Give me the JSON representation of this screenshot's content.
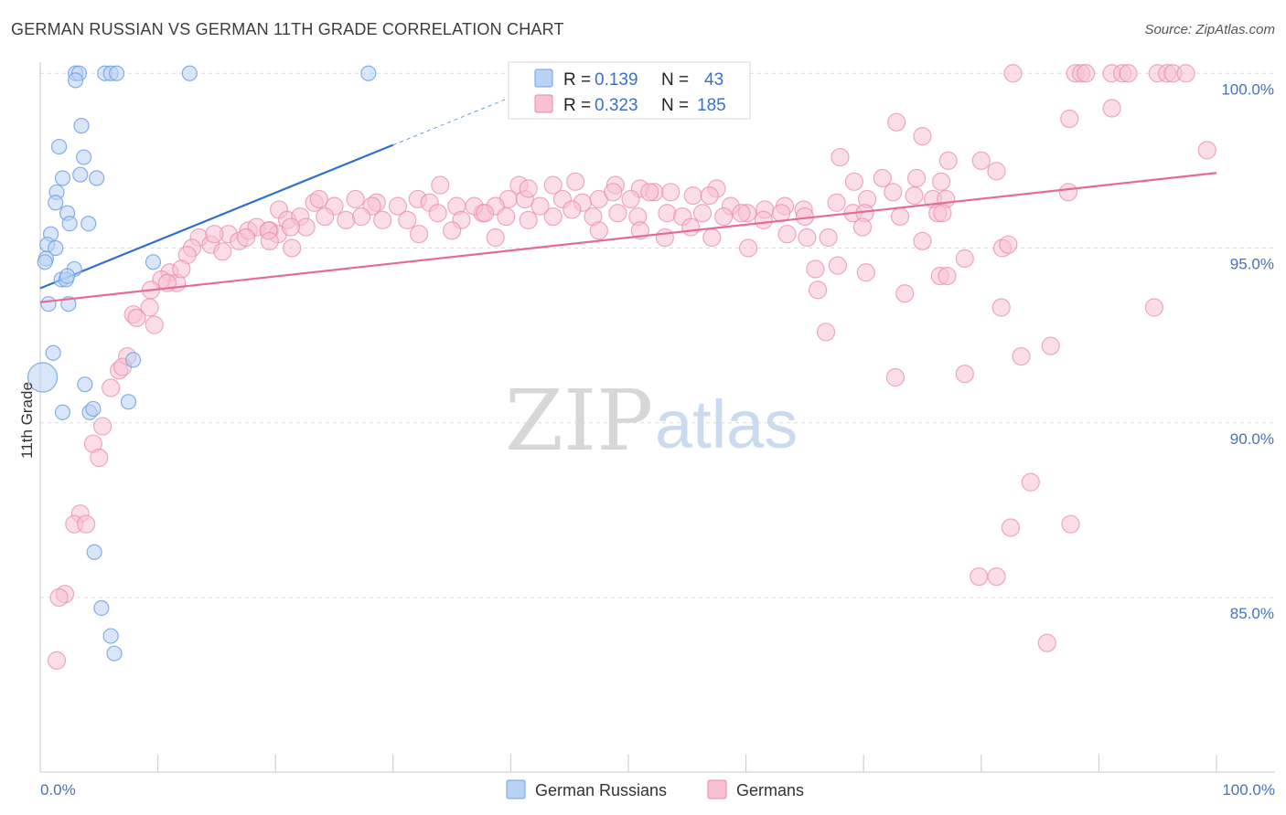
{
  "title": "GERMAN RUSSIAN VS GERMAN 11TH GRADE CORRELATION CHART",
  "source": "Source: ZipAtlas.com",
  "watermark": {
    "zip": "ZIP",
    "atlas": "atlas"
  },
  "colors": {
    "blue": "#6fa2e6",
    "blue_fill": "#b9d2f3",
    "pink": "#e888a8",
    "pink_fill": "#f7c1d3",
    "blue_line": "#2f6fd0",
    "pink_line": "#e56a94",
    "tick": "#4472c4"
  },
  "legend": {
    "r_label": "R =",
    "n_label": "N =",
    "series": [
      {
        "name": "German Russians",
        "r": "0.139",
        "n": "43"
      },
      {
        "name": "Germans",
        "r": "0.323",
        "n": "185"
      }
    ]
  },
  "chart_data": {
    "type": "scatter",
    "title": "GERMAN RUSSIAN VS GERMAN 11TH GRADE CORRELATION CHART",
    "xlabel": "",
    "ylabel": "11th Grade",
    "xlim": [
      0,
      100
    ],
    "ylim": [
      80.0,
      100.8
    ],
    "x_tick_labels": [
      "0.0%",
      "100.0%"
    ],
    "y_ticks": [
      85.0,
      90.0,
      95.0,
      100.0
    ],
    "y_tick_labels": [
      "85.0%",
      "90.0%",
      "95.0%",
      "100.0%"
    ],
    "series": [
      {
        "name": "German Russians",
        "trend": {
          "x0": 0,
          "y0": 93.85,
          "x1": 30,
          "y1": 97.95,
          "dashed_to_x": 42
        },
        "points": [
          [
            3.0,
            100.0
          ],
          [
            3.3,
            100.0
          ],
          [
            5.5,
            100.0
          ],
          [
            6.0,
            100.0
          ],
          [
            6.5,
            100.0
          ],
          [
            12.7,
            100.0
          ],
          [
            27.9,
            100.0
          ],
          [
            3.0,
            99.8
          ],
          [
            3.5,
            98.5
          ],
          [
            1.6,
            97.9
          ],
          [
            3.7,
            97.6
          ],
          [
            1.9,
            97.0
          ],
          [
            3.4,
            97.1
          ],
          [
            4.8,
            97.0
          ],
          [
            1.4,
            96.6
          ],
          [
            1.3,
            96.3
          ],
          [
            2.3,
            96.0
          ],
          [
            2.5,
            95.7
          ],
          [
            4.1,
            95.7
          ],
          [
            0.9,
            95.4
          ],
          [
            0.6,
            95.1
          ],
          [
            1.3,
            95.0
          ],
          [
            0.5,
            94.7
          ],
          [
            0.4,
            94.6
          ],
          [
            2.9,
            94.4
          ],
          [
            9.6,
            94.6
          ],
          [
            1.8,
            94.1
          ],
          [
            2.2,
            94.1
          ],
          [
            0.7,
            93.4
          ],
          [
            2.4,
            93.4
          ],
          [
            1.1,
            92.0
          ],
          [
            7.9,
            91.8
          ],
          [
            0.2,
            91.3
          ],
          [
            3.8,
            91.1
          ],
          [
            7.5,
            90.6
          ],
          [
            1.9,
            90.3
          ],
          [
            4.2,
            90.3
          ],
          [
            4.5,
            90.4
          ],
          [
            4.6,
            86.3
          ],
          [
            5.2,
            84.7
          ],
          [
            6.0,
            83.9
          ],
          [
            6.3,
            83.4
          ],
          [
            2.3,
            94.2
          ]
        ],
        "sizes": {
          "0.2,91.3": "large"
        }
      },
      {
        "name": "Germans",
        "trend": {
          "x0": 0,
          "y0": 93.45,
          "x1": 100,
          "y1": 97.15
        },
        "points": [
          [
            82.7,
            100.0
          ],
          [
            88.0,
            100.0
          ],
          [
            88.5,
            100.0
          ],
          [
            88.9,
            100.0
          ],
          [
            91.1,
            100.0
          ],
          [
            92.0,
            100.0
          ],
          [
            92.5,
            100.0
          ],
          [
            95.0,
            100.0
          ],
          [
            95.8,
            100.0
          ],
          [
            96.3,
            100.0
          ],
          [
            97.4,
            100.0
          ],
          [
            91.1,
            99.0
          ],
          [
            87.5,
            98.7
          ],
          [
            72.8,
            98.6
          ],
          [
            75.0,
            98.2
          ],
          [
            99.2,
            97.8
          ],
          [
            68.0,
            97.6
          ],
          [
            77.2,
            97.5
          ],
          [
            80.0,
            97.5
          ],
          [
            81.3,
            97.2
          ],
          [
            71.6,
            97.0
          ],
          [
            69.2,
            96.9
          ],
          [
            74.5,
            97.0
          ],
          [
            76.6,
            96.9
          ],
          [
            40.7,
            96.8
          ],
          [
            45.5,
            96.9
          ],
          [
            43.6,
            96.8
          ],
          [
            34.0,
            96.8
          ],
          [
            57.5,
            96.7
          ],
          [
            48.9,
            96.8
          ],
          [
            51.0,
            96.7
          ],
          [
            52.2,
            96.6
          ],
          [
            87.4,
            96.6
          ],
          [
            20.3,
            96.1
          ],
          [
            23.3,
            96.3
          ],
          [
            23.7,
            96.4
          ],
          [
            25.0,
            96.2
          ],
          [
            26.8,
            96.4
          ],
          [
            28.6,
            96.3
          ],
          [
            30.4,
            96.2
          ],
          [
            32.1,
            96.4
          ],
          [
            33.1,
            96.3
          ],
          [
            35.4,
            96.2
          ],
          [
            37.6,
            96.0
          ],
          [
            39.8,
            96.4
          ],
          [
            41.2,
            96.4
          ],
          [
            42.5,
            96.2
          ],
          [
            44.4,
            96.4
          ],
          [
            46.1,
            96.3
          ],
          [
            47.5,
            96.4
          ],
          [
            48.7,
            96.6
          ],
          [
            50.2,
            96.4
          ],
          [
            51.8,
            96.6
          ],
          [
            53.6,
            96.6
          ],
          [
            55.5,
            96.5
          ],
          [
            56.9,
            96.5
          ],
          [
            58.7,
            96.2
          ],
          [
            60.1,
            96.0
          ],
          [
            61.6,
            96.1
          ],
          [
            63.3,
            96.2
          ],
          [
            64.9,
            96.1
          ],
          [
            67.7,
            96.3
          ],
          [
            70.3,
            96.4
          ],
          [
            72.5,
            96.6
          ],
          [
            74.3,
            96.5
          ],
          [
            75.9,
            96.4
          ],
          [
            77.0,
            96.4
          ],
          [
            28.2,
            96.2
          ],
          [
            36.9,
            96.2
          ],
          [
            38.7,
            96.2
          ],
          [
            21.0,
            95.8
          ],
          [
            22.1,
            95.9
          ],
          [
            22.6,
            95.6
          ],
          [
            24.2,
            95.9
          ],
          [
            26.0,
            95.8
          ],
          [
            27.3,
            95.9
          ],
          [
            29.1,
            95.8
          ],
          [
            31.2,
            95.8
          ],
          [
            33.8,
            96.0
          ],
          [
            35.8,
            95.8
          ],
          [
            37.8,
            96.0
          ],
          [
            39.6,
            95.9
          ],
          [
            41.5,
            95.8
          ],
          [
            43.6,
            95.9
          ],
          [
            45.2,
            96.1
          ],
          [
            47.0,
            95.9
          ],
          [
            49.1,
            96.0
          ],
          [
            50.8,
            95.9
          ],
          [
            53.3,
            96.0
          ],
          [
            54.6,
            95.9
          ],
          [
            56.3,
            96.0
          ],
          [
            58.1,
            95.9
          ],
          [
            59.6,
            96.0
          ],
          [
            61.5,
            95.8
          ],
          [
            63.0,
            96.0
          ],
          [
            65.0,
            95.9
          ],
          [
            69.1,
            96.0
          ],
          [
            70.1,
            96.0
          ],
          [
            73.1,
            95.9
          ],
          [
            76.3,
            96.0
          ],
          [
            76.7,
            96.0
          ],
          [
            13.5,
            95.3
          ],
          [
            14.5,
            95.1
          ],
          [
            16.0,
            95.4
          ],
          [
            16.9,
            95.2
          ],
          [
            17.7,
            95.5
          ],
          [
            18.4,
            95.6
          ],
          [
            19.5,
            95.5
          ],
          [
            20.2,
            95.4
          ],
          [
            21.3,
            95.6
          ],
          [
            14.8,
            95.4
          ],
          [
            17.5,
            95.3
          ],
          [
            19.4,
            95.5
          ],
          [
            32.2,
            95.4
          ],
          [
            35.0,
            95.5
          ],
          [
            38.7,
            95.3
          ],
          [
            47.5,
            95.5
          ],
          [
            51.0,
            95.5
          ],
          [
            53.1,
            95.3
          ],
          [
            55.3,
            95.6
          ],
          [
            57.1,
            95.3
          ],
          [
            60.2,
            95.0
          ],
          [
            63.5,
            95.4
          ],
          [
            65.2,
            95.3
          ],
          [
            67.0,
            95.3
          ],
          [
            69.9,
            95.6
          ],
          [
            75.0,
            95.2
          ],
          [
            81.8,
            95.0
          ],
          [
            82.3,
            95.1
          ],
          [
            78.6,
            94.7
          ],
          [
            12.9,
            95.0
          ],
          [
            12.5,
            94.8
          ],
          [
            15.5,
            94.9
          ],
          [
            11.0,
            94.3
          ],
          [
            11.6,
            94.0
          ],
          [
            12.0,
            94.4
          ],
          [
            10.3,
            94.1
          ],
          [
            10.8,
            94.0
          ],
          [
            9.4,
            93.8
          ],
          [
            21.4,
            95.0
          ],
          [
            65.9,
            94.4
          ],
          [
            67.8,
            94.5
          ],
          [
            70.2,
            94.3
          ],
          [
            76.5,
            94.2
          ],
          [
            77.1,
            94.2
          ],
          [
            73.5,
            93.7
          ],
          [
            66.1,
            93.8
          ],
          [
            81.7,
            93.3
          ],
          [
            94.7,
            93.3
          ],
          [
            9.3,
            93.3
          ],
          [
            7.9,
            93.1
          ],
          [
            8.2,
            93.0
          ],
          [
            9.7,
            92.8
          ],
          [
            66.8,
            92.6
          ],
          [
            85.9,
            92.2
          ],
          [
            83.4,
            91.9
          ],
          [
            7.4,
            91.9
          ],
          [
            6.7,
            91.5
          ],
          [
            7.0,
            91.6
          ],
          [
            6.0,
            91.0
          ],
          [
            72.7,
            91.3
          ],
          [
            78.6,
            91.4
          ],
          [
            5.3,
            89.9
          ],
          [
            4.5,
            89.4
          ],
          [
            5.0,
            89.0
          ],
          [
            84.2,
            88.3
          ],
          [
            3.4,
            87.4
          ],
          [
            2.9,
            87.1
          ],
          [
            3.9,
            87.1
          ],
          [
            82.5,
            87.0
          ],
          [
            87.6,
            87.1
          ],
          [
            79.8,
            85.6
          ],
          [
            81.3,
            85.6
          ],
          [
            2.1,
            85.1
          ],
          [
            1.6,
            85.0
          ],
          [
            1.4,
            83.2
          ],
          [
            85.6,
            83.7
          ],
          [
            41.5,
            96.7
          ],
          [
            19.5,
            95.2
          ]
        ]
      }
    ]
  }
}
